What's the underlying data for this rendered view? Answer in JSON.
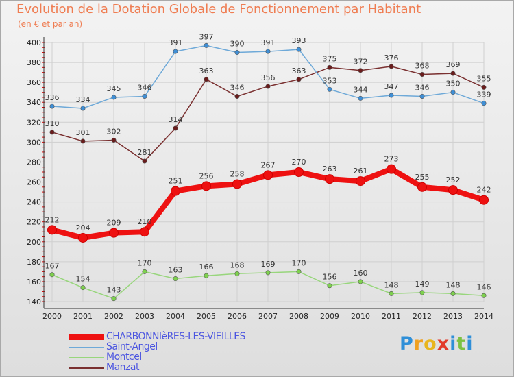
{
  "header": {
    "title": "Evolution de la Dotation Globale de Fonctionnement par Habitant",
    "subtitle": "(en € et par an)"
  },
  "colors": {
    "title": "#ef7d52",
    "legend_text": "#4b55e0",
    "grid": "#cfcfcf",
    "axis": "#333333",
    "tick_red": "#dd0000"
  },
  "chart_data": {
    "type": "line",
    "title": "Evolution de la Dotation Globale de Fonctionnement par Habitant",
    "subtitle": "(en € et par an)",
    "xlabel": "",
    "ylabel": "",
    "ylim": [
      140,
      400
    ],
    "ytick_step": 20,
    "grid": true,
    "legend_position": "bottom-left",
    "x": [
      "2000",
      "2001",
      "2002",
      "2003",
      "2004",
      "2005",
      "2006",
      "2007",
      "2008",
      "2009",
      "2010",
      "2011",
      "2012",
      "2013",
      "2014"
    ],
    "series": [
      {
        "name": "CHARBONNIèRES-LES-VIEILLES",
        "color": "#ee1111",
        "marker_color": "#ee1111",
        "emphasis": true,
        "values": [
          212,
          204,
          209,
          210,
          251,
          256,
          258,
          267,
          270,
          263,
          261,
          273,
          255,
          252,
          242
        ]
      },
      {
        "name": "Saint-Angel",
        "color": "#6ea9d8",
        "marker_color": "#3f8fd6",
        "emphasis": false,
        "values": [
          336,
          334,
          345,
          346,
          391,
          397,
          390,
          391,
          393,
          353,
          344,
          347,
          346,
          350,
          339
        ]
      },
      {
        "name": "Montcel",
        "color": "#98d67c",
        "marker_color": "#7ed14e",
        "emphasis": false,
        "values": [
          167,
          154,
          143,
          170,
          163,
          166,
          168,
          169,
          170,
          156,
          160,
          148,
          149,
          148,
          146
        ]
      },
      {
        "name": "Manzat",
        "color": "#7a3030",
        "marker_color": "#6a1c1c",
        "emphasis": false,
        "values": [
          310,
          301,
          302,
          281,
          314,
          363,
          346,
          356,
          363,
          375,
          372,
          376,
          368,
          369,
          355
        ]
      }
    ]
  },
  "logo": {
    "letters": [
      "P",
      "r",
      "o",
      "x",
      "i",
      "t",
      "i"
    ],
    "colors": [
      "#2f8fd8",
      "#f0a020",
      "#e8b51e",
      "#e23a2a",
      "#2f8fd8",
      "#7cc142",
      "#2f8fd8"
    ]
  }
}
